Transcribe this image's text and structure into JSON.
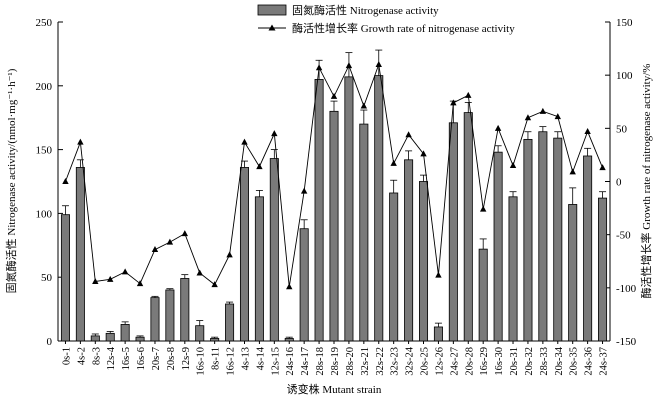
{
  "chart_data": {
    "type": "bar",
    "xlabel": "诱变株 Mutant strain",
    "ylabel": "固氮酶活性 Nitrogenase activity/(nmol·mg⁻¹·h⁻¹)",
    "ylabel_right": "酶活性增长率 Growth rate of nitrogenase activity/%",
    "ylim": [
      0,
      250
    ],
    "y2lim": [
      -150,
      150
    ],
    "yticks": [
      "0",
      "50",
      "100",
      "150",
      "200",
      "250"
    ],
    "y2ticks": [
      "-150",
      "-100",
      "-50",
      "0",
      "50",
      "100",
      "150"
    ],
    "grid": false,
    "legend_position": "top-center",
    "categories": [
      "0s-1",
      "4s-2",
      "8s-3",
      "12s-4",
      "16s-5",
      "16s-6",
      "20s-7",
      "20s-8",
      "12s-9",
      "16s-10",
      "8s-11",
      "16s-12",
      "4s-13",
      "4s-14",
      "12s-15",
      "24s-16",
      "24s-17",
      "28s-18",
      "28s-19",
      "28s-20",
      "32s-21",
      "32s-22",
      "32s-23",
      "32s-24",
      "20s-25",
      "12s-26",
      "24s-27",
      "20s-28",
      "16s-29",
      "16s-30",
      "20s-31",
      "20s-32",
      "28s-33",
      "20s-34",
      "20s-35",
      "24s-36",
      "24s-37"
    ],
    "series": [
      {
        "name": "固氮酶活性 Nitrogenase activity",
        "type": "bar",
        "axis": "left",
        "color": "#7a7a7a",
        "values": [
          99,
          136,
          4,
          6,
          13,
          3,
          34,
          40,
          49,
          12,
          2,
          29,
          136,
          113,
          143,
          2,
          88,
          205,
          180,
          207,
          170,
          208,
          116,
          142,
          125,
          11,
          171,
          179,
          72,
          148,
          113,
          158,
          164,
          159,
          107,
          145,
          112
        ],
        "errors": [
          7,
          6,
          1.5,
          1.5,
          2,
          1,
          1,
          1,
          3,
          4,
          1,
          1.5,
          5,
          5,
          7,
          1,
          7,
          15,
          8,
          19,
          11,
          20,
          10,
          7,
          5,
          3,
          17,
          8,
          8,
          5,
          4,
          6,
          4,
          5,
          13,
          6,
          5
        ]
      },
      {
        "name": "酶活性增长率 Growth rate of nitrogenase activity",
        "type": "line",
        "axis": "right",
        "marker": "triangle",
        "color": "#000000",
        "values": [
          0,
          37,
          -94,
          -92,
          -85,
          -96,
          -64,
          -57,
          -49,
          -86,
          -97,
          -69,
          37,
          14,
          45,
          -99,
          -9,
          107,
          80,
          109,
          71,
          110,
          17,
          44,
          26,
          -88,
          74,
          81,
          -26,
          50,
          15,
          60,
          66,
          61,
          9,
          47,
          13
        ]
      }
    ]
  }
}
